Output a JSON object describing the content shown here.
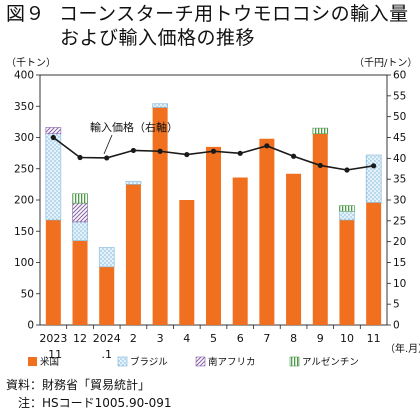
{
  "title": {
    "prefix": "図９",
    "line1": "コーンスターチ用トウモロコシの輸入量",
    "line2": "および輸入価格の推移"
  },
  "notes": {
    "source": "資料：財務省「貿易統計」",
    "note": "　注：HSコード1005.90-091"
  },
  "colors": {
    "usa": "#f07020",
    "brazil": "#cfe8f7",
    "south_africa": "#c9b7d8",
    "argentina": "#c9e3c0",
    "line": "#1a1a1a"
  },
  "chart_data": {
    "type": "bar",
    "stacked": true,
    "y_left_label": "（千トン）",
    "y_right_label": "（千円/トン）",
    "x_unit_label": "（年.月）",
    "y_left_range": [
      0,
      400
    ],
    "y_left_ticks": [
      "0",
      "50",
      "100",
      "150",
      "200",
      "250",
      "300",
      "350",
      "400"
    ],
    "y_right_range": [
      0,
      60
    ],
    "y_right_ticks": [
      "0",
      "5",
      "10",
      "15",
      "20",
      "25",
      "30",
      "35",
      "40",
      "45",
      "50",
      "55",
      "60"
    ],
    "categories": [
      {
        "top": "2023",
        "bottom": ".11"
      },
      {
        "top": "12",
        "bottom": ""
      },
      {
        "top": "2024",
        "bottom": ".1"
      },
      {
        "top": "2",
        "bottom": ""
      },
      {
        "top": "3",
        "bottom": ""
      },
      {
        "top": "4",
        "bottom": ""
      },
      {
        "top": "5",
        "bottom": ""
      },
      {
        "top": "6",
        "bottom": ""
      },
      {
        "top": "7",
        "bottom": ""
      },
      {
        "top": "8",
        "bottom": ""
      },
      {
        "top": "9",
        "bottom": ""
      },
      {
        "top": "10",
        "bottom": ""
      },
      {
        "top": "11",
        "bottom": ""
      }
    ],
    "series": [
      {
        "key": "usa",
        "name": "米国",
        "pattern": "solid",
        "values": [
          168,
          135,
          93,
          225,
          348,
          200,
          285,
          236,
          298,
          242,
          306,
          168,
          196
        ]
      },
      {
        "key": "brazil",
        "name": "ブラジル",
        "pattern": "dots",
        "values": [
          138,
          30,
          31,
          5,
          6,
          0,
          0,
          0,
          0,
          0,
          0,
          14,
          76
        ]
      },
      {
        "key": "south_africa",
        "name": "南アフリカ",
        "pattern": "diag",
        "values": [
          10,
          30,
          0,
          0,
          0,
          0,
          0,
          0,
          0,
          0,
          0,
          0,
          0
        ]
      },
      {
        "key": "argentina",
        "name": "アルゼンチン",
        "pattern": "vert",
        "values": [
          0,
          15,
          0,
          0,
          0,
          0,
          0,
          0,
          0,
          0,
          9,
          9,
          0
        ]
      }
    ],
    "line_series": {
      "name": "輸入価格（右軸）",
      "axis": "right",
      "values": [
        45.0,
        40.2,
        40.1,
        41.9,
        41.7,
        40.9,
        41.7,
        41.2,
        43.0,
        40.5,
        38.3,
        37.2,
        38.2
      ]
    },
    "legend_position": "bottom",
    "grid": false
  }
}
